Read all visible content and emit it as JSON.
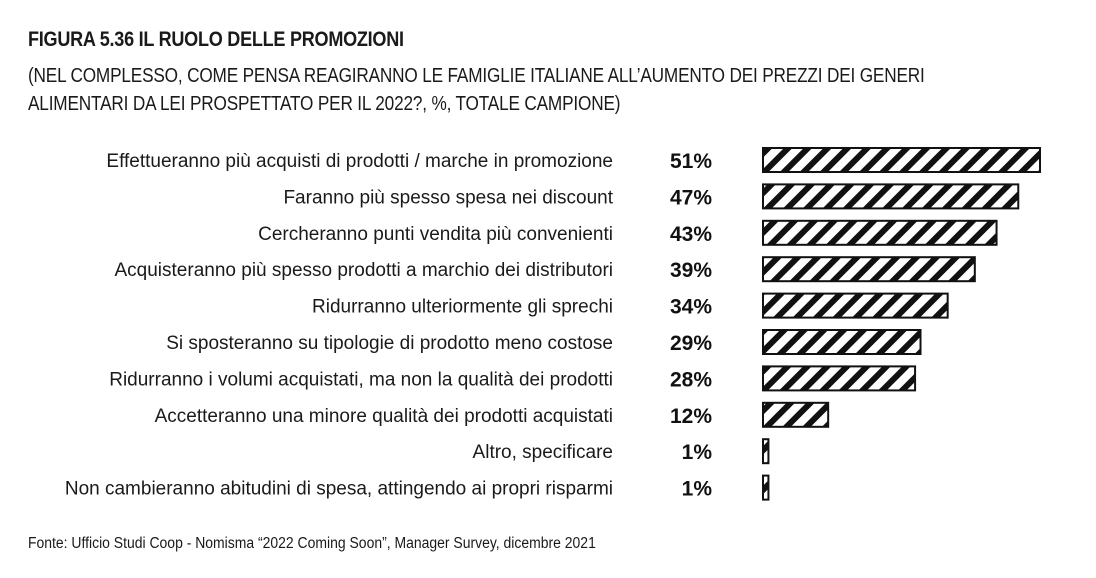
{
  "title": "FIGURA 5.36 IL RUOLO DELLE PROMOZIONI",
  "subtitle": "(NEL COMPLESSO, COME PENSA REAGIRANNO LE FAMIGLIE ITALIANE ALL’AUMENTO DEI PREZZI DEI GENERI ALIMENTARI DA LEI PROSPETTATO PER IL 2022?, %, TOTALE CAMPIONE)",
  "source": "Fonte: Ufficio Studi Coop - Nomisma “2022 Coming Soon”, Manager Survey, dicembre 2021",
  "chart_data": {
    "type": "bar",
    "orientation": "horizontal",
    "fill_pattern": "diagonal-hatch",
    "bar_color": "#111111",
    "value_suffix": "%",
    "categories": [
      "Effettueranno più acquisti di prodotti / marche in promozione",
      "Faranno più spesso spesa nei discount",
      "Cercheranno punti vendita più convenienti",
      "Acquisteranno più spesso prodotti a marchio dei distributori",
      "Ridurranno ulteriormente gli sprechi",
      "Si sposteranno su tipologie di prodotto meno costose",
      "Ridurranno i volumi acquistati, ma non la qualità dei prodotti",
      "Accetteranno una minore qualità dei prodotti acquistati",
      "Altro, specificare",
      "Non cambieranno abitudini di spesa, attingendo ai propri risparmi"
    ],
    "values": [
      51,
      47,
      43,
      39,
      34,
      29,
      28,
      12,
      1,
      1
    ],
    "value_labels": [
      "51%",
      "47%",
      "43%",
      "39%",
      "34%",
      "29%",
      "28%",
      "12%",
      "1%",
      "1%"
    ],
    "xlim": [
      0,
      51
    ],
    "grid": false,
    "legend": "none"
  }
}
